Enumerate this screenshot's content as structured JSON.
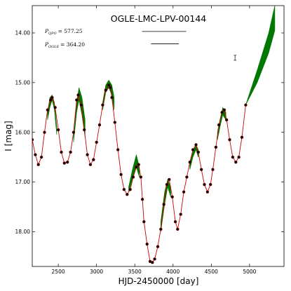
{
  "chart_data": {
    "type": "line",
    "title": "OGLE-LMC-LPV-00144",
    "xlabel": "HJD-2450000 [day]",
    "ylabel": "I [mag]",
    "xlim": [
      2160,
      5450
    ],
    "ylim": [
      18.7,
      13.45
    ],
    "y_inverted": true,
    "x_ticks": [
      2500,
      3000,
      3500,
      4000,
      4500,
      5000
    ],
    "x_tick_labels": [
      "2500",
      "3000",
      "3500",
      "4000",
      "4500",
      "5000"
    ],
    "y_ticks": [
      14.0,
      15.0,
      16.0,
      17.0,
      18.0
    ],
    "y_tick_labels": [
      "14.00",
      "15.00",
      "16.00",
      "17.00",
      "18.00"
    ],
    "grid": false,
    "annotations": [
      {
        "symbol": "P",
        "subscript": "QPO",
        "value": "= 577.25"
      },
      {
        "symbol": "P",
        "subscript": "OGLE",
        "value": "= 364.20"
      }
    ],
    "period_bars": [
      {
        "x_start": 3595,
        "x_end": 4172,
        "y": 13.97
      },
      {
        "x_start": 3712,
        "x_end": 4076,
        "y": 14.22
      }
    ],
    "error_bar": {
      "x": 4810,
      "y": 14.5,
      "half_height": 0.05
    },
    "series": [
      {
        "kind": "observations",
        "color": "#000000",
        "x": [
          2160,
          2200,
          2240,
          2280,
          2320,
          2360,
          2400,
          2420,
          2460,
          2500,
          2540,
          2580,
          2620,
          2660,
          2700,
          2740,
          2760,
          2800,
          2840,
          2880,
          2920,
          2960,
          3000,
          3040,
          3080,
          3120,
          3160,
          3180,
          3200,
          3240,
          3280,
          3320,
          3360,
          3400,
          3440,
          3480,
          3520,
          3550,
          3580,
          3600,
          3620,
          3660,
          3700,
          3730,
          3760,
          3800,
          3840,
          3880,
          3920,
          3950,
          3990,
          4030,
          4060,
          4100,
          4140,
          4180,
          4220,
          4260,
          4300,
          4330,
          4370,
          4410,
          4450,
          4490,
          4520,
          4560,
          4600,
          4640,
          4670,
          4700,
          4740,
          4780,
          4820,
          4860,
          4900,
          4950
        ],
        "y": [
          16.15,
          16.45,
          16.65,
          16.5,
          16.0,
          15.55,
          15.35,
          15.3,
          15.5,
          15.95,
          16.4,
          16.62,
          16.6,
          16.4,
          16.0,
          15.35,
          15.25,
          15.45,
          15.95,
          16.45,
          16.65,
          16.55,
          16.2,
          15.85,
          15.45,
          15.15,
          15.05,
          15.1,
          15.3,
          15.8,
          16.35,
          16.85,
          17.15,
          17.25,
          17.15,
          16.9,
          16.7,
          16.65,
          16.9,
          17.35,
          17.8,
          18.25,
          18.6,
          18.62,
          18.55,
          18.3,
          17.95,
          17.45,
          17.05,
          16.95,
          17.3,
          17.8,
          17.95,
          17.65,
          17.2,
          16.9,
          16.6,
          16.35,
          16.25,
          16.4,
          16.75,
          17.05,
          17.2,
          17.05,
          16.75,
          16.3,
          15.85,
          15.6,
          15.55,
          15.75,
          16.15,
          16.5,
          16.6,
          16.5,
          16.1,
          15.45
        ]
      },
      {
        "kind": "model",
        "color": "#cc0000",
        "x": [
          2160,
          2200,
          2240,
          2280,
          2320,
          2360,
          2400,
          2420,
          2460,
          2500,
          2540,
          2580,
          2620,
          2660,
          2700,
          2740,
          2760,
          2800,
          2840,
          2880,
          2920,
          2960,
          3000,
          3040,
          3080,
          3120,
          3160,
          3180,
          3200,
          3240,
          3280,
          3320,
          3360,
          3400,
          3440,
          3480,
          3520,
          3550,
          3580,
          3600,
          3620,
          3660,
          3700,
          3730,
          3760,
          3800,
          3840,
          3880,
          3920,
          3950,
          3990,
          4030,
          4060,
          4100,
          4140,
          4180,
          4220,
          4260,
          4300,
          4330,
          4370,
          4410,
          4450,
          4490,
          4520,
          4560,
          4600,
          4640,
          4670,
          4700,
          4740,
          4780,
          4820,
          4860,
          4900,
          4950
        ],
        "y": [
          16.15,
          16.45,
          16.65,
          16.5,
          16.0,
          15.55,
          15.35,
          15.3,
          15.5,
          15.95,
          16.4,
          16.62,
          16.6,
          16.4,
          16.0,
          15.35,
          15.25,
          15.45,
          15.95,
          16.45,
          16.65,
          16.55,
          16.2,
          15.85,
          15.45,
          15.15,
          15.05,
          15.1,
          15.3,
          15.8,
          16.35,
          16.85,
          17.15,
          17.25,
          17.15,
          16.9,
          16.7,
          16.65,
          16.9,
          17.35,
          17.8,
          18.25,
          18.6,
          18.62,
          18.55,
          18.3,
          17.95,
          17.45,
          17.05,
          16.95,
          17.3,
          17.8,
          17.95,
          17.65,
          17.2,
          16.9,
          16.6,
          16.35,
          16.25,
          16.4,
          16.75,
          17.05,
          17.2,
          17.05,
          16.75,
          16.3,
          15.85,
          15.6,
          15.55,
          15.75,
          16.15,
          16.5,
          16.6,
          16.5,
          16.1,
          15.45
        ]
      },
      {
        "kind": "envelope",
        "color": "#007700",
        "segments": [
          {
            "x": [
              2360,
              2390,
              2420,
              2450,
              2480
            ],
            "top": [
              15.6,
              15.3,
              15.25,
              15.4,
              15.9
            ],
            "bottom": [
              15.75,
              15.5,
              15.35,
              15.55,
              16.05
            ]
          },
          {
            "x": [
              2700,
              2740,
              2770,
              2810,
              2850
            ],
            "top": [
              16.1,
              15.4,
              15.1,
              15.3,
              15.75
            ],
            "bottom": [
              16.2,
              15.6,
              15.35,
              15.65,
              16.1
            ]
          },
          {
            "x": [
              3080,
              3120,
              3160,
              3200,
              3230
            ],
            "top": [
              15.4,
              15.05,
              14.95,
              15.05,
              15.3
            ],
            "bottom": [
              15.55,
              15.2,
              15.1,
              15.25,
              15.55
            ]
          },
          {
            "x": [
              3420,
              3470,
              3520,
              3560
            ],
            "top": [
              17.1,
              16.75,
              16.45,
              16.7
            ],
            "bottom": [
              17.2,
              16.95,
              16.7,
              16.9
            ]
          },
          {
            "x": [
              3840,
              3890,
              3930,
              3970
            ],
            "top": [
              17.8,
              17.2,
              16.95,
              17.1
            ],
            "bottom": [
              18.0,
              17.45,
              17.1,
              17.3
            ]
          },
          {
            "x": [
              4220,
              4260,
              4300,
              4330
            ],
            "top": [
              16.6,
              16.4,
              16.25,
              16.35
            ],
            "bottom": [
              16.75,
              16.5,
              16.35,
              16.5
            ]
          },
          {
            "x": [
              4580,
              4620,
              4650,
              4690
            ],
            "top": [
              16.0,
              15.7,
              15.5,
              15.6
            ],
            "bottom": [
              16.15,
              15.85,
              15.65,
              15.75
            ]
          },
          {
            "x": [
              4950,
              5100,
              5250,
              5330
            ],
            "top": [
              15.45,
              14.75,
              14.0,
              13.45
            ],
            "bottom": [
              15.45,
              15.0,
              14.4,
              13.95
            ]
          }
        ]
      }
    ]
  }
}
